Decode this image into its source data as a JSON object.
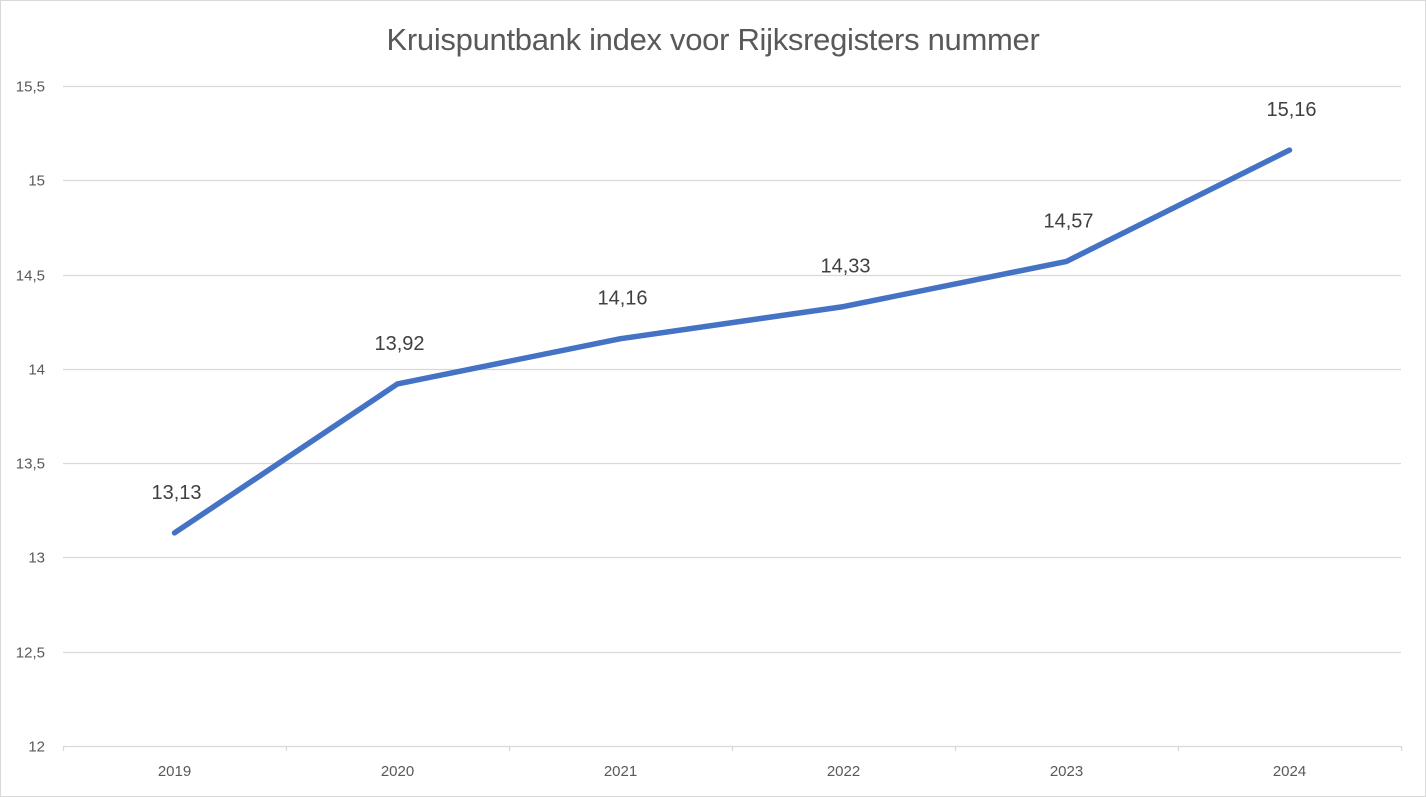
{
  "chart_data": {
    "type": "line",
    "title": "Kruispuntbank index voor Rijksregisters nummer",
    "xlabel": "",
    "ylabel": "",
    "categories": [
      "2019",
      "2020",
      "2021",
      "2022",
      "2023",
      "2024"
    ],
    "series": [
      {
        "name": "Kruispuntbank index",
        "values": [
          13.13,
          13.92,
          14.16,
          14.33,
          14.57,
          15.16
        ],
        "labels": [
          "13,13",
          "13,92",
          "14,16",
          "14,33",
          "14,57",
          "15,16"
        ],
        "color": "#4472C4"
      }
    ],
    "ylim": [
      12,
      15.5
    ],
    "yticks": [
      12,
      12.5,
      13,
      13.5,
      14,
      14.5,
      15,
      15.5
    ],
    "ytick_labels": [
      "12",
      "12,5",
      "13",
      "13,5",
      "14",
      "14,5",
      "15",
      "15,5"
    ],
    "grid": true,
    "legend": "none"
  },
  "colors": {
    "line": "#4472C4",
    "grid": "#d9d9d9",
    "axis_text": "#595959",
    "label_text": "#404040",
    "title_text": "#595959"
  }
}
